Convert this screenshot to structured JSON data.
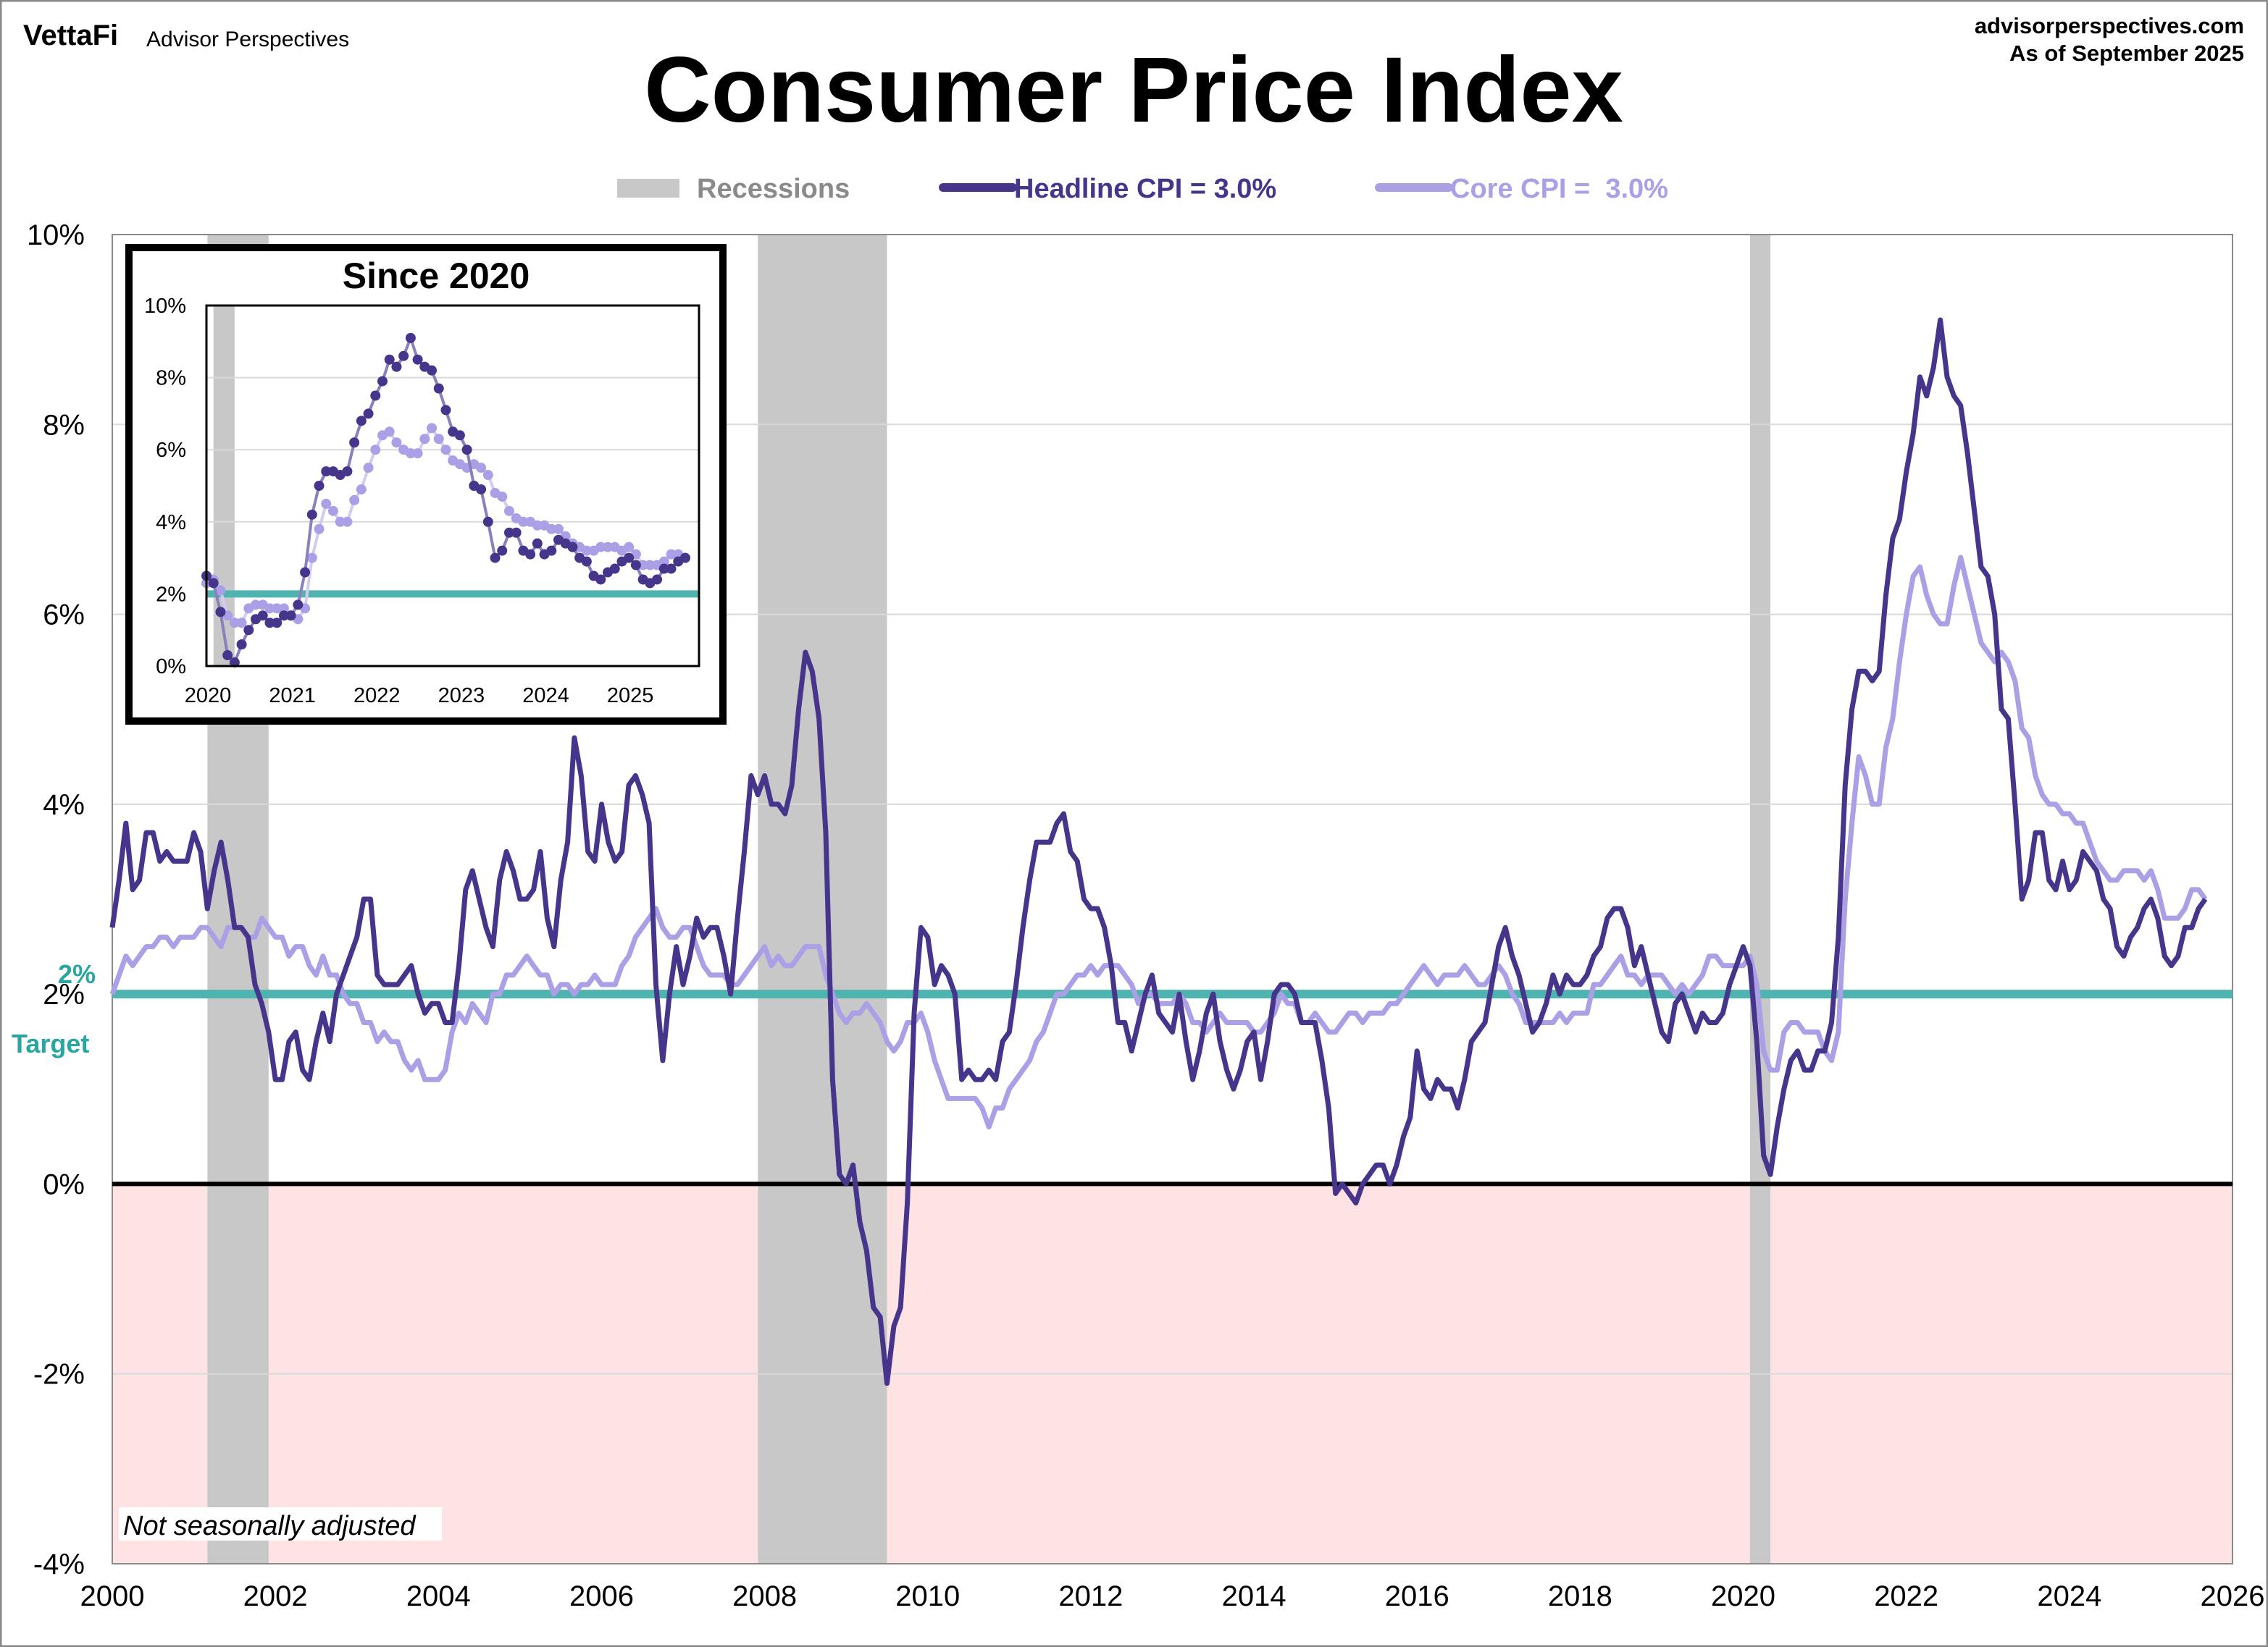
{
  "header": {
    "brand": "VettaFi",
    "brand_sub": "Advisor Perspectives",
    "site": "advisorperspectives.com",
    "as_of": "As of September 2025"
  },
  "chart_data": [
    {
      "type": "line",
      "title": "Consumer Price Index",
      "note": "Not seasonally adjusted",
      "legend_position": "top",
      "legend": {
        "recessions": "Recessions",
        "headline": "Headline CPI = 3.0%",
        "core": "Core CPI =  3.0%"
      },
      "target_label_value": "2%",
      "target_label_text": "Target",
      "target_value": 2,
      "xlim": [
        2000,
        2026
      ],
      "ylim": [
        -4,
        10
      ],
      "grid": true,
      "x_ticks": [
        "2000",
        "2002",
        "2004",
        "2006",
        "2008",
        "2010",
        "2012",
        "2014",
        "2016",
        "2018",
        "2020",
        "2022",
        "2024",
        "2026"
      ],
      "y_ticks": [
        "-4%",
        "-2%",
        "0%",
        "2%",
        "4%",
        "6%",
        "8%",
        "10%"
      ],
      "colors": {
        "headline": "#47358c",
        "core": "#ab9fe6",
        "target": "#4fb3b0",
        "recession": "#c8c8c8",
        "negative_zone": "#fde3e4"
      },
      "recessions": [
        [
          "2001-03",
          "2001-11"
        ],
        [
          "2007-12",
          "2009-06"
        ],
        [
          "2020-02",
          "2020-04"
        ]
      ],
      "start": "2000-01",
      "series": [
        {
          "name": "Headline CPI",
          "values": [
            2.7,
            3.2,
            3.8,
            3.1,
            3.2,
            3.7,
            3.7,
            3.4,
            3.5,
            3.4,
            3.4,
            3.4,
            3.7,
            3.5,
            2.9,
            3.3,
            3.6,
            3.2,
            2.7,
            2.7,
            2.6,
            2.1,
            1.9,
            1.6,
            1.1,
            1.1,
            1.5,
            1.6,
            1.2,
            1.1,
            1.5,
            1.8,
            1.5,
            2.0,
            2.2,
            2.4,
            2.6,
            3.0,
            3.0,
            2.2,
            2.1,
            2.1,
            2.1,
            2.2,
            2.3,
            2.0,
            1.8,
            1.9,
            1.9,
            1.7,
            1.7,
            2.3,
            3.1,
            3.3,
            3.0,
            2.7,
            2.5,
            3.2,
            3.5,
            3.3,
            3.0,
            3.0,
            3.1,
            3.5,
            2.8,
            2.5,
            3.2,
            3.6,
            4.7,
            4.3,
            3.5,
            3.4,
            4.0,
            3.6,
            3.4,
            3.5,
            4.2,
            4.3,
            4.1,
            3.8,
            2.1,
            1.3,
            2.0,
            2.5,
            2.1,
            2.4,
            2.8,
            2.6,
            2.7,
            2.7,
            2.4,
            2.0,
            2.8,
            3.5,
            4.3,
            4.1,
            4.3,
            4.0,
            4.0,
            3.9,
            4.2,
            5.0,
            5.6,
            5.4,
            4.9,
            3.7,
            1.1,
            0.1,
            0.0,
            0.2,
            -0.4,
            -0.7,
            -1.3,
            -1.4,
            -2.1,
            -1.5,
            -1.3,
            -0.2,
            1.8,
            2.7,
            2.6,
            2.1,
            2.3,
            2.2,
            2.0,
            1.1,
            1.2,
            1.1,
            1.1,
            1.2,
            1.1,
            1.5,
            1.6,
            2.1,
            2.7,
            3.2,
            3.6,
            3.6,
            3.6,
            3.8,
            3.9,
            3.5,
            3.4,
            3.0,
            2.9,
            2.9,
            2.7,
            2.3,
            1.7,
            1.7,
            1.4,
            1.7,
            2.0,
            2.2,
            1.8,
            1.7,
            1.6,
            2.0,
            1.5,
            1.1,
            1.4,
            1.8,
            2.0,
            1.5,
            1.2,
            1.0,
            1.2,
            1.5,
            1.6,
            1.1,
            1.5,
            2.0,
            2.1,
            2.1,
            2.0,
            1.7,
            1.7,
            1.7,
            1.3,
            0.8,
            -0.1,
            0.0,
            -0.1,
            -0.2,
            0.0,
            0.1,
            0.2,
            0.2,
            0.0,
            0.2,
            0.5,
            0.7,
            1.4,
            1.0,
            0.9,
            1.1,
            1.0,
            1.0,
            0.8,
            1.1,
            1.5,
            1.6,
            1.7,
            2.1,
            2.5,
            2.7,
            2.4,
            2.2,
            1.9,
            1.6,
            1.7,
            1.9,
            2.2,
            2.0,
            2.2,
            2.1,
            2.1,
            2.2,
            2.4,
            2.5,
            2.8,
            2.9,
            2.9,
            2.7,
            2.3,
            2.5,
            2.2,
            1.9,
            1.6,
            1.5,
            1.9,
            2.0,
            1.8,
            1.6,
            1.8,
            1.7,
            1.7,
            1.8,
            2.1,
            2.3,
            2.5,
            2.3,
            1.5,
            0.3,
            0.1,
            0.6,
            1.0,
            1.3,
            1.4,
            1.2,
            1.2,
            1.4,
            1.4,
            1.7,
            2.6,
            4.2,
            5.0,
            5.4,
            5.4,
            5.3,
            5.4,
            6.2,
            6.8,
            7.0,
            7.5,
            7.9,
            8.5,
            8.3,
            8.6,
            9.1,
            8.5,
            8.3,
            8.2,
            7.7,
            7.1,
            6.5,
            6.4,
            6.0,
            5.0,
            4.9,
            4.0,
            3.0,
            3.2,
            3.7,
            3.7,
            3.2,
            3.1,
            3.4,
            3.1,
            3.2,
            3.5,
            3.4,
            3.3,
            3.0,
            2.9,
            2.5,
            2.4,
            2.6,
            2.7,
            2.9,
            3.0,
            2.8,
            2.4,
            2.3,
            2.4,
            2.7,
            2.7,
            2.9,
            3.0
          ]
        },
        {
          "name": "Core CPI",
          "values": [
            2.0,
            2.2,
            2.4,
            2.3,
            2.4,
            2.5,
            2.5,
            2.6,
            2.6,
            2.5,
            2.6,
            2.6,
            2.6,
            2.7,
            2.7,
            2.6,
            2.5,
            2.7,
            2.7,
            2.7,
            2.6,
            2.6,
            2.8,
            2.7,
            2.6,
            2.6,
            2.4,
            2.5,
            2.5,
            2.3,
            2.2,
            2.4,
            2.2,
            2.2,
            2.0,
            1.9,
            1.9,
            1.7,
            1.7,
            1.5,
            1.6,
            1.5,
            1.5,
            1.3,
            1.2,
            1.3,
            1.1,
            1.1,
            1.1,
            1.2,
            1.6,
            1.8,
            1.7,
            1.9,
            1.8,
            1.7,
            2.0,
            2.0,
            2.2,
            2.2,
            2.3,
            2.4,
            2.3,
            2.2,
            2.2,
            2.0,
            2.1,
            2.1,
            2.0,
            2.1,
            2.1,
            2.2,
            2.1,
            2.1,
            2.1,
            2.3,
            2.4,
            2.6,
            2.7,
            2.8,
            2.9,
            2.7,
            2.6,
            2.6,
            2.7,
            2.7,
            2.5,
            2.3,
            2.2,
            2.2,
            2.2,
            2.1,
            2.1,
            2.2,
            2.3,
            2.4,
            2.5,
            2.3,
            2.4,
            2.3,
            2.3,
            2.4,
            2.5,
            2.5,
            2.5,
            2.2,
            2.0,
            1.8,
            1.7,
            1.8,
            1.8,
            1.9,
            1.8,
            1.7,
            1.5,
            1.4,
            1.5,
            1.7,
            1.7,
            1.8,
            1.6,
            1.3,
            1.1,
            0.9,
            0.9,
            0.9,
            0.9,
            0.9,
            0.8,
            0.6,
            0.8,
            0.8,
            1.0,
            1.1,
            1.2,
            1.3,
            1.5,
            1.6,
            1.8,
            2.0,
            2.0,
            2.1,
            2.2,
            2.2,
            2.3,
            2.2,
            2.3,
            2.3,
            2.3,
            2.2,
            2.1,
            1.9,
            2.0,
            2.0,
            1.9,
            1.9,
            1.9,
            2.0,
            1.9,
            1.7,
            1.7,
            1.6,
            1.7,
            1.8,
            1.7,
            1.7,
            1.7,
            1.7,
            1.6,
            1.6,
            1.7,
            1.8,
            2.0,
            1.9,
            1.9,
            1.7,
            1.7,
            1.8,
            1.7,
            1.6,
            1.6,
            1.7,
            1.8,
            1.8,
            1.7,
            1.8,
            1.8,
            1.8,
            1.9,
            1.9,
            2.0,
            2.1,
            2.2,
            2.3,
            2.2,
            2.1,
            2.2,
            2.2,
            2.2,
            2.3,
            2.2,
            2.1,
            2.1,
            2.2,
            2.3,
            2.2,
            2.0,
            1.9,
            1.7,
            1.7,
            1.7,
            1.7,
            1.7,
            1.8,
            1.7,
            1.8,
            1.8,
            1.8,
            2.1,
            2.1,
            2.2,
            2.3,
            2.4,
            2.2,
            2.2,
            2.1,
            2.2,
            2.2,
            2.2,
            2.1,
            2.0,
            2.1,
            2.0,
            2.1,
            2.2,
            2.4,
            2.4,
            2.3,
            2.3,
            2.3,
            2.3,
            2.4,
            2.1,
            1.4,
            1.2,
            1.2,
            1.6,
            1.7,
            1.7,
            1.6,
            1.6,
            1.6,
            1.4,
            1.3,
            1.6,
            3.0,
            3.8,
            4.5,
            4.3,
            4.0,
            4.0,
            4.6,
            4.9,
            5.5,
            6.0,
            6.4,
            6.5,
            6.2,
            6.0,
            5.9,
            5.9,
            6.3,
            6.6,
            6.3,
            6.0,
            5.7,
            5.6,
            5.5,
            5.6,
            5.5,
            5.3,
            4.8,
            4.7,
            4.3,
            4.1,
            4.0,
            4.0,
            3.9,
            3.9,
            3.8,
            3.8,
            3.6,
            3.4,
            3.3,
            3.2,
            3.2,
            3.3,
            3.3,
            3.3,
            3.2,
            3.3,
            3.1,
            2.8,
            2.8,
            2.8,
            2.9,
            3.1,
            3.1,
            3.0
          ]
        }
      ]
    },
    {
      "type": "line",
      "title": "Since 2020",
      "xlim": [
        2020,
        2025.83
      ],
      "ylim": [
        0,
        10
      ],
      "grid": true,
      "x_ticks": [
        "2020",
        "2021",
        "2022",
        "2023",
        "2024",
        "2025"
      ],
      "y_ticks": [
        "0%",
        "2%",
        "4%",
        "6%",
        "8%",
        "10%"
      ],
      "start": "2020-01",
      "markers": true,
      "series_ref": "same as main chart from 2020-01 onward"
    }
  ]
}
